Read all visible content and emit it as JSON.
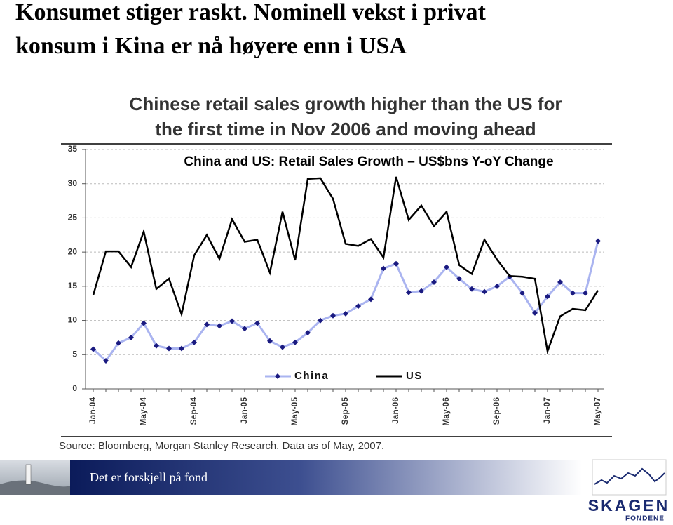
{
  "slide_title": [
    "Konsumet stiger raskt. Nominell vekst i privat",
    "konsum i Kina er nå høyere enn i USA"
  ],
  "chart_data": {
    "type": "line",
    "title": [
      "Chinese retail sales growth higher than the US for",
      "the first time in Nov 2006 and moving ahead"
    ],
    "subtitle": "China and US: Retail Sales Growth – US$bns Y-oY Change",
    "source": "Source: Bloomberg, Morgan Stanley Research. Data as of May, 2007.",
    "categories": [
      "Jan-04",
      null,
      null,
      null,
      "May-04",
      null,
      null,
      null,
      "Sep-04",
      null,
      null,
      null,
      "Jan-05",
      null,
      null,
      null,
      "May-05",
      null,
      null,
      null,
      "Sep-05",
      null,
      null,
      null,
      "Jan-06",
      null,
      null,
      null,
      "May-06",
      null,
      null,
      null,
      "Sep-06",
      null,
      null,
      null,
      "Jan-07",
      null,
      null,
      null,
      "May-07"
    ],
    "series": [
      {
        "name": "China",
        "color": "#aab4f0",
        "marker_color": "#1a1a80",
        "values": [
          5.8,
          4.1,
          6.7,
          7.5,
          9.6,
          6.3,
          5.9,
          5.9,
          6.8,
          9.4,
          9.2,
          9.9,
          8.8,
          9.6,
          7.0,
          6.1,
          6.8,
          8.2,
          10.0,
          10.7,
          11.0,
          12.1,
          13.1,
          17.6,
          18.3,
          14.1,
          14.3,
          15.6,
          17.8,
          16.1,
          14.6,
          14.2,
          15.0,
          16.4,
          14.0,
          11.1,
          13.5,
          15.6,
          14.0,
          14.0,
          21.6
        ]
      },
      {
        "name": "US",
        "color": "#000000",
        "values": [
          13.7,
          20.1,
          20.1,
          17.8,
          23.0,
          14.6,
          16.1,
          10.9,
          19.5,
          22.5,
          19.0,
          24.8,
          21.5,
          21.8,
          17.0,
          25.9,
          18.8,
          30.7,
          30.8,
          27.8,
          21.2,
          20.9,
          21.9,
          19.2,
          31.0,
          24.7,
          26.8,
          23.8,
          25.9,
          18.1,
          16.8,
          21.8,
          18.9,
          16.5,
          16.4,
          16.1,
          5.5,
          10.6,
          11.7,
          11.5,
          14.4
        ]
      }
    ],
    "ylim": [
      0,
      35
    ],
    "yticks": [
      0,
      5,
      10,
      15,
      20,
      25,
      30,
      35
    ],
    "grid": true
  },
  "footer": {
    "tagline": "Det er forskjell på fond",
    "logo": "SKAGEN",
    "logo_sub": "FONDENE"
  }
}
